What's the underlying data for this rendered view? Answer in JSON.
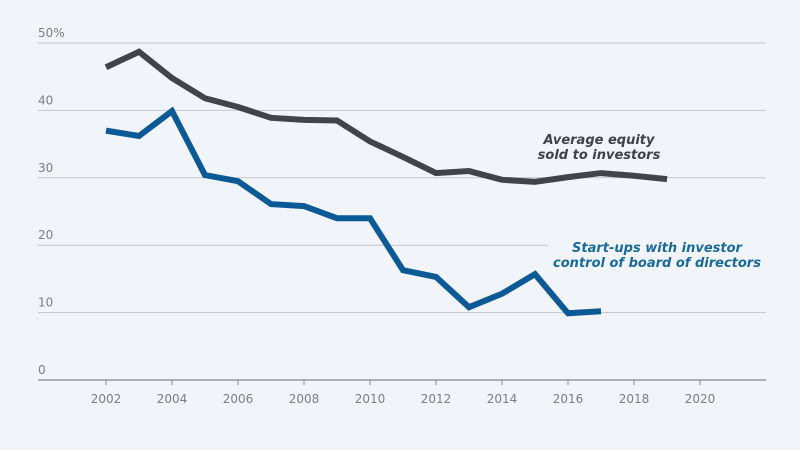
{
  "chart_data": {
    "type": "line",
    "title": "",
    "xlabel": "",
    "ylabel": "",
    "ylim": [
      0,
      50
    ],
    "xlim": [
      2000,
      2022
    ],
    "grid": true,
    "y_ticks": [
      {
        "value": 0,
        "label": "0"
      },
      {
        "value": 10,
        "label": "10"
      },
      {
        "value": 20,
        "label": "20"
      },
      {
        "value": 30,
        "label": "30"
      },
      {
        "value": 40,
        "label": "40"
      },
      {
        "value": 50,
        "label": "50%"
      }
    ],
    "x_ticks": [
      {
        "value": 2002,
        "label": "2002"
      },
      {
        "value": 2004,
        "label": "2004"
      },
      {
        "value": 2006,
        "label": "2006"
      },
      {
        "value": 2008,
        "label": "2008"
      },
      {
        "value": 2010,
        "label": "2010"
      },
      {
        "value": 2012,
        "label": "2012"
      },
      {
        "value": 2014,
        "label": "2014"
      },
      {
        "value": 2016,
        "label": "2016"
      },
      {
        "value": 2018,
        "label": "2018"
      },
      {
        "value": 2020,
        "label": "2020"
      }
    ],
    "series": [
      {
        "name": "Average equity sold to investors",
        "label_lines": [
          "Average equity",
          "sold to investors"
        ],
        "color": "#414448",
        "label_color": "#3f4247",
        "x": [
          2002,
          2003,
          2004,
          2005,
          2006,
          2007,
          2008,
          2009,
          2010,
          2011,
          2012,
          2013,
          2014,
          2015,
          2016,
          2017,
          2018,
          2019
        ],
        "values": [
          46.4,
          48.7,
          44.8,
          41.8,
          40.5,
          38.9,
          38.6,
          38.5,
          35.4,
          33.1,
          30.7,
          31.0,
          29.7,
          29.4,
          30.1,
          30.7,
          30.3,
          29.8
        ]
      },
      {
        "name": "Start-ups with investor control of board of directors",
        "label_lines": [
          "Start-ups with investor",
          "control of board of directors"
        ],
        "color": "#0b5a96",
        "label_color": "#1a6a9a",
        "x": [
          2002,
          2003,
          2004,
          2005,
          2006,
          2007,
          2008,
          2009,
          2010,
          2011,
          2012,
          2013,
          2014,
          2015,
          2016,
          2017
        ],
        "values": [
          37.0,
          36.2,
          39.9,
          30.4,
          29.5,
          26.1,
          25.8,
          24.0,
          24.0,
          16.3,
          15.3,
          10.8,
          12.8,
          15.7,
          9.9,
          10.2
        ]
      }
    ]
  }
}
